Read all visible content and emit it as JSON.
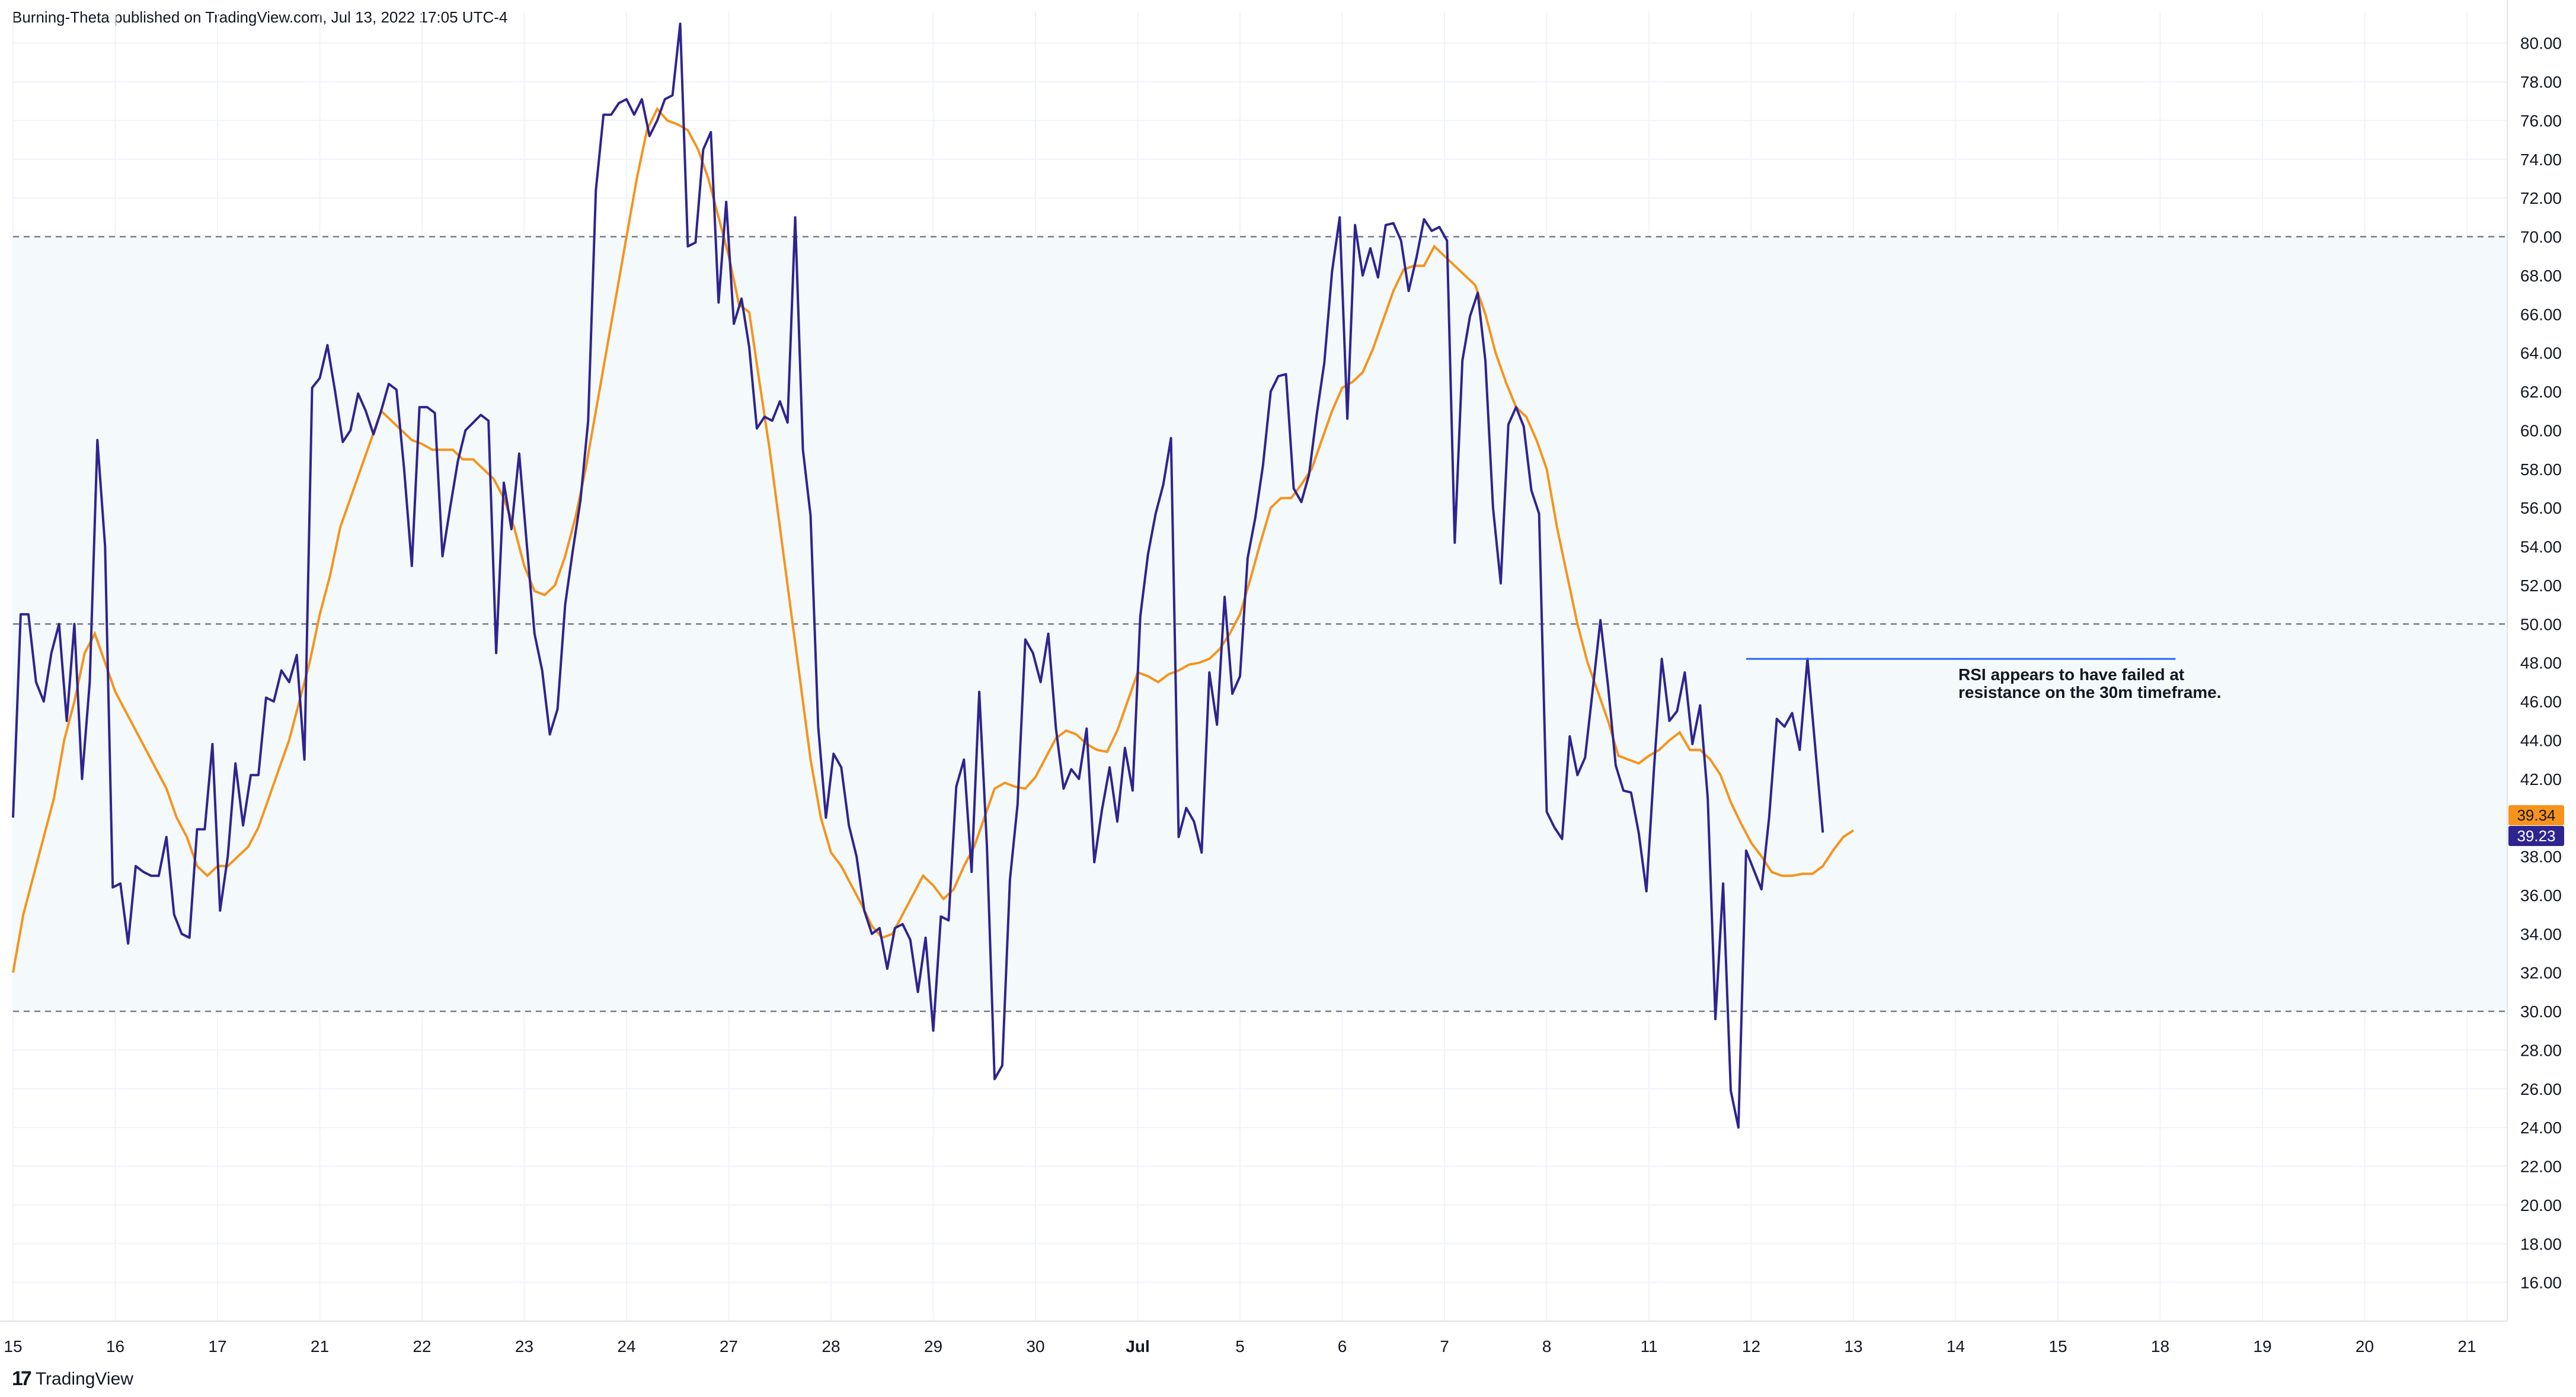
{
  "header": {
    "published_text": "Burning-Theta published on TradingView.com, Jul 13, 2022 17:05 UTC-4"
  },
  "footer": {
    "logo_mark": "17",
    "brand": "TradingView"
  },
  "colors": {
    "rsi": "#2e248f",
    "rsi_ma": "#f7931a",
    "band_fill": "#f4fafc",
    "level_line": "#787b86",
    "resistance_line": "#2962ff"
  },
  "chart_data": {
    "type": "line",
    "ylim": [
      14,
      81
    ],
    "yticks": [
      "16.00",
      "18.00",
      "20.00",
      "22.00",
      "24.00",
      "26.00",
      "28.00",
      "30.00",
      "32.00",
      "34.00",
      "36.00",
      "38.00",
      "40.00",
      "42.00",
      "44.00",
      "46.00",
      "48.00",
      "50.00",
      "52.00",
      "54.00",
      "56.00",
      "58.00",
      "60.00",
      "62.00",
      "64.00",
      "66.00",
      "68.00",
      "70.00",
      "72.00",
      "74.00",
      "76.00",
      "78.00",
      "80.00"
    ],
    "xticks": [
      {
        "label": "15",
        "i": 0
      },
      {
        "label": "16",
        "i": 10
      },
      {
        "label": "17",
        "i": 20
      },
      {
        "label": "21",
        "i": 30
      },
      {
        "label": "22",
        "i": 40
      },
      {
        "label": "23",
        "i": 50
      },
      {
        "label": "24",
        "i": 60
      },
      {
        "label": "27",
        "i": 70
      },
      {
        "label": "28",
        "i": 80
      },
      {
        "label": "29",
        "i": 90
      },
      {
        "label": "30",
        "i": 100
      },
      {
        "label": "Jul",
        "i": 110,
        "bold": true
      },
      {
        "label": "5",
        "i": 120
      },
      {
        "label": "6",
        "i": 130
      },
      {
        "label": "7",
        "i": 140
      },
      {
        "label": "8",
        "i": 150
      },
      {
        "label": "11",
        "i": 160
      },
      {
        "label": "12",
        "i": 170
      },
      {
        "label": "13",
        "i": 180
      },
      {
        "label": "14",
        "i": 190
      },
      {
        "label": "15",
        "i": 200
      },
      {
        "label": "18",
        "i": 210
      },
      {
        "label": "19",
        "i": 220
      },
      {
        "label": "20",
        "i": 230
      },
      {
        "label": "21",
        "i": 240
      }
    ],
    "levels": [
      30,
      50,
      70
    ],
    "band": [
      30,
      70
    ],
    "series": [
      {
        "key": "rsi",
        "values": [
          40,
          50.5,
          50.5,
          47,
          46,
          48.5,
          50,
          45,
          50,
          42,
          47,
          59.5,
          54,
          36.4,
          36.6,
          33.5,
          37.5,
          37.2,
          37,
          37,
          39,
          35,
          34,
          33.8,
          39.4,
          39.4,
          43.8,
          35.2,
          38,
          42.8,
          39.6,
          42.2,
          42.2,
          46.2,
          46,
          47.6,
          47,
          48.4,
          43,
          62.2,
          62.7,
          64.4,
          62,
          59.4,
          60,
          61.9,
          61,
          59.8,
          61,
          62.4,
          62.1,
          58,
          53,
          61.2,
          61.2,
          60.9,
          53.5,
          56,
          58.4,
          60,
          60.4,
          60.8,
          60.5,
          48.5,
          57.3,
          54.9,
          58.8,
          54.1,
          49.5,
          47.6,
          44.3,
          45.6,
          51,
          53.8,
          56.4,
          60.5,
          72.4,
          76.3,
          76.3,
          76.9,
          77.1,
          76.3,
          77.1,
          75.2,
          76,
          77.1,
          77.3,
          81,
          69.5,
          69.7,
          74.5,
          75.4,
          66.6,
          71.8,
          65.5,
          66.8,
          64.3,
          60.1,
          60.7,
          60.5,
          61.5,
          60.4,
          71,
          59,
          55.6,
          44.7,
          40,
          43.3,
          42.6,
          39.6,
          38,
          35.2,
          34,
          34.3,
          32.2,
          34.3,
          34.5,
          33.7,
          31,
          33.8,
          29,
          34.9,
          34.7,
          41.6,
          43,
          37.2,
          46.5,
          38.5,
          26.5,
          27.2,
          36.8,
          40.7,
          49.2,
          48.5,
          47,
          49.5,
          44.6,
          41.5,
          42.5,
          42,
          44.6,
          37.7,
          40.4,
          42.6,
          39.8,
          43.6,
          41.4,
          50.4,
          53.6,
          55.7,
          57.2,
          59.6,
          39,
          40.5,
          39.8,
          38.2,
          47.5,
          44.8,
          51.4,
          46.4,
          47.3,
          53.4,
          55.5,
          58.2,
          62,
          62.8,
          62.9,
          57,
          56.3,
          57.7,
          60.8,
          63.5,
          68.2,
          71,
          60.6,
          70.6,
          68,
          69.4,
          67.9,
          70.6,
          70.7,
          69.8,
          67.2,
          68.9,
          70.9,
          70.3,
          70.5,
          69.8,
          54.2,
          63.6,
          65.9,
          67.1,
          63.6,
          56,
          52.1,
          60.3,
          61.2,
          60.2,
          56.9,
          55.7,
          40.3,
          39.5,
          38.9,
          44.2,
          42.2,
          43.1,
          46.6,
          50.2,
          46.8,
          42.7,
          41.4,
          41.3,
          39.2,
          36.2,
          42.6,
          48.2,
          45,
          45.5,
          47.5,
          43.8,
          45.8,
          41,
          29.6,
          36.6,
          25.9,
          24,
          38.3,
          37.3,
          36.3,
          40,
          45.1,
          44.7,
          45.4,
          43.5,
          48.2,
          43.7,
          39.23
        ],
        "x_step": 0.75
      },
      {
        "key": "rsi_ma",
        "values": [
          32,
          35,
          37,
          39,
          41,
          44,
          46,
          48.5,
          49.5,
          48,
          46.5,
          45.5,
          44.5,
          43.5,
          42.5,
          41.5,
          40,
          39,
          37.5,
          37,
          37.5,
          37.5,
          38,
          38.5,
          39.5,
          41,
          42.5,
          44,
          46,
          48,
          50.5,
          52.5,
          55,
          56.5,
          58,
          59.5,
          61,
          60.5,
          60,
          59.5,
          59.3,
          59,
          59,
          59,
          58.5,
          58.5,
          58,
          57.5,
          56.5,
          55,
          53,
          51.7,
          51.5,
          52,
          53.5,
          55.5,
          58,
          61,
          64,
          67,
          70,
          73,
          75.5,
          76.6,
          76,
          75.8,
          75.5,
          74.5,
          73,
          71,
          69,
          66.5,
          66.1,
          62.5,
          59,
          55,
          51,
          47,
          43,
          40,
          38.2,
          37.5,
          36.5,
          35.5,
          34.4,
          33.8,
          34,
          35,
          36,
          37,
          36.5,
          35.8,
          36.3,
          37.5,
          38.5,
          40,
          41.5,
          41.8,
          41.6,
          41.5,
          42.1,
          43.1,
          44.1,
          44.5,
          44.3,
          43.8,
          43.5,
          43.4,
          44.5,
          46,
          47.5,
          47.3,
          47,
          47.4,
          47.6,
          47.9,
          48,
          48.2,
          48.7,
          49.5,
          50.5,
          52.3,
          54.2,
          56,
          56.5,
          56.5,
          57.2,
          58,
          59.5,
          61,
          62.2,
          62.5,
          63,
          64.2,
          65.7,
          67.2,
          68.3,
          68.5,
          68.5,
          69.5,
          69,
          68.5,
          68,
          67.5,
          66,
          64,
          62.5,
          61.2,
          60.7,
          59.5,
          58,
          55,
          52.5,
          50,
          48,
          46.5,
          45,
          43.2,
          43,
          42.8,
          43.2,
          43.5,
          44,
          44.4,
          43.5,
          43.5,
          43,
          42.2,
          40.8,
          39.7,
          38.7,
          38,
          37.2,
          37,
          37,
          37.1,
          37.1,
          37.5,
          38.3,
          39,
          39.34
        ],
        "x_step": 1.0
      }
    ],
    "last_values": {
      "rsi_ma": "39.34",
      "rsi": "39.23"
    },
    "annotation": {
      "lines": [
        "RSI appears to have failed at",
        "resistance on the 30m timeframe."
      ],
      "resistance_level": 48.2,
      "from_i": 169.5,
      "to_i": 211.5
    }
  }
}
